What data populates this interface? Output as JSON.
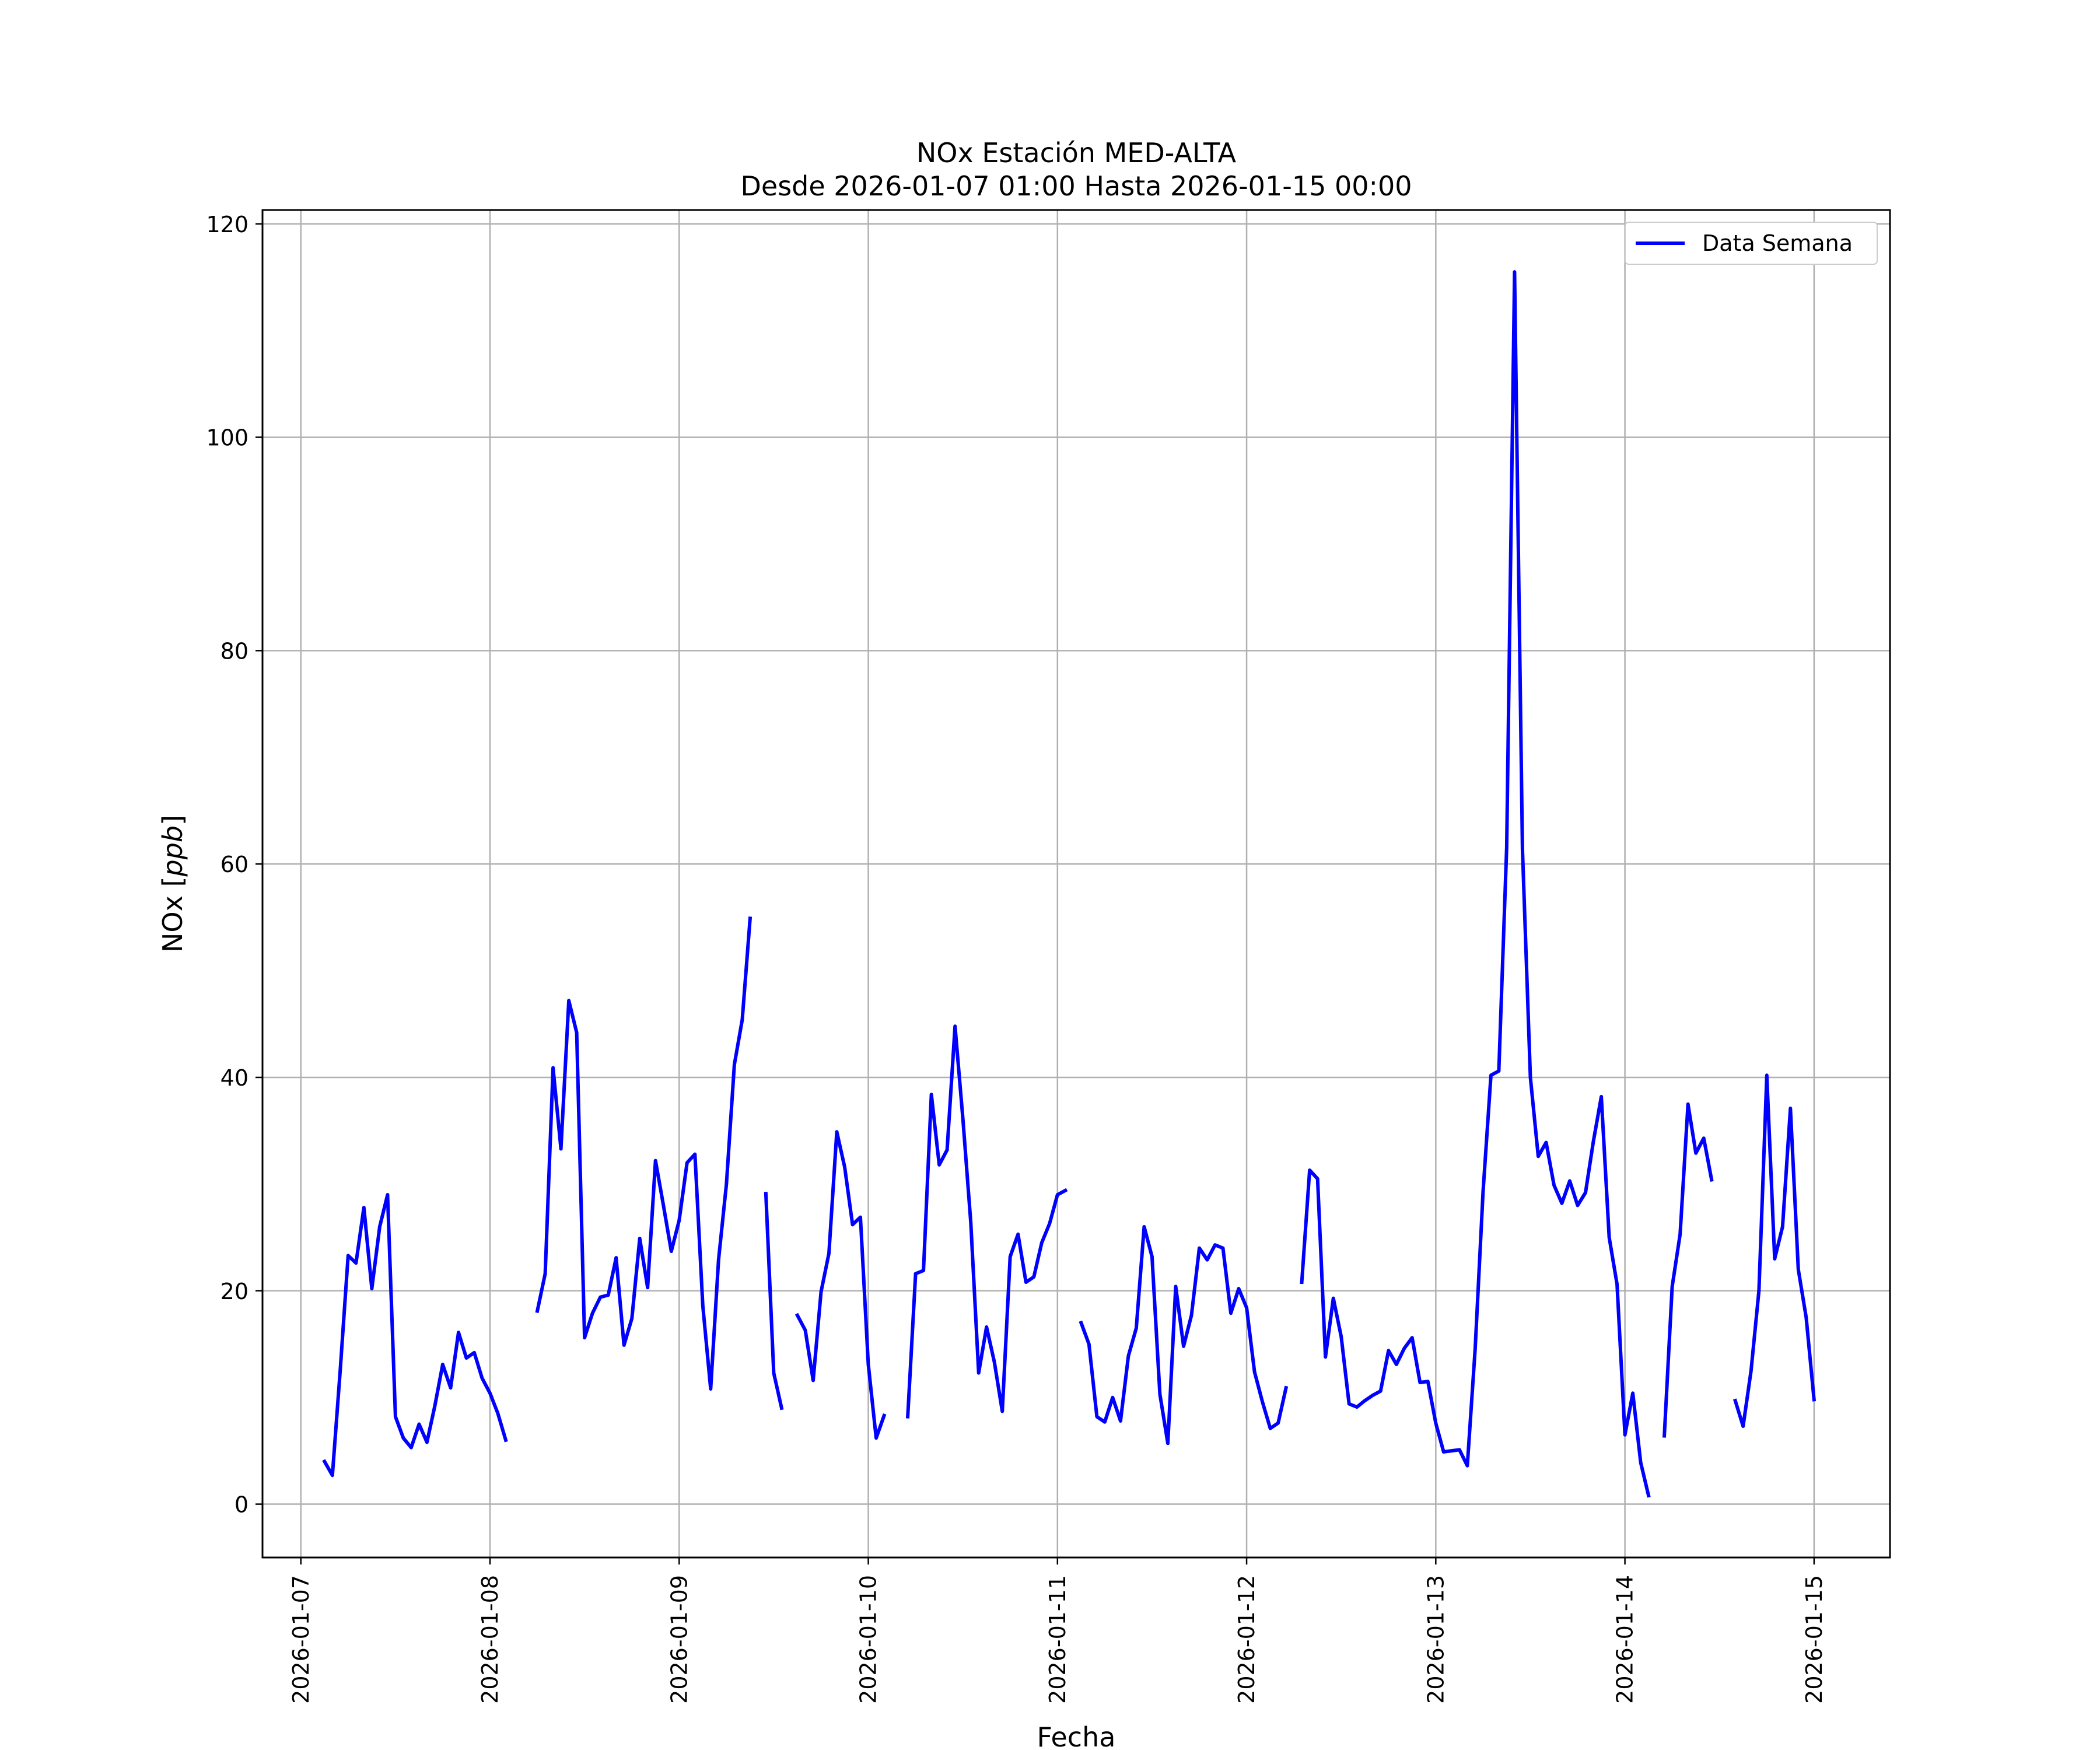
{
  "chart_data": {
    "type": "line",
    "title_lines": [
      "NOx Estación MED-ALTA",
      "Desde 2026-01-07 01:00 Hasta 2026-01-15 00:00"
    ],
    "xlabel": "Fecha",
    "ylabel_main": "NOx [",
    "ylabel_unit": "ppb",
    "ylabel_end": "]",
    "x_type": "datetime",
    "xlim": [
      "2026-01-06 19:08",
      "2026-01-15 09:38"
    ],
    "ylim": [
      -5,
      121.3
    ],
    "y_ticks": [
      0,
      20,
      40,
      60,
      80,
      100,
      120
    ],
    "x_ticks": [
      "2026-01-07",
      "2026-01-08",
      "2026-01-09",
      "2026-01-10",
      "2026-01-11",
      "2026-01-12",
      "2026-01-13",
      "2026-01-14",
      "2026-01-15"
    ],
    "grid": true,
    "legend": {
      "position": "top-right",
      "entries": [
        "Data Semana"
      ]
    },
    "colors": {
      "line": "#0000ff",
      "grid": "#b0b0b0",
      "axes": "#000000"
    },
    "series": [
      {
        "name": "Data Semana",
        "segments": [
          [
            [
              "2026-01-07 03:00",
              4.0
            ],
            [
              "2026-01-07 04:00",
              2.7
            ],
            [
              "2026-01-07 05:00",
              12.6
            ],
            [
              "2026-01-07 06:00",
              23.3
            ],
            [
              "2026-01-07 07:00",
              22.6
            ],
            [
              "2026-01-07 08:00",
              27.8
            ],
            [
              "2026-01-07 09:00",
              20.2
            ],
            [
              "2026-01-07 10:00",
              26.0
            ],
            [
              "2026-01-07 11:00",
              29.0
            ],
            [
              "2026-01-07 12:00",
              8.2
            ],
            [
              "2026-01-07 13:00",
              6.2
            ],
            [
              "2026-01-07 14:00",
              5.3
            ],
            [
              "2026-01-07 15:00",
              7.5
            ],
            [
              "2026-01-07 16:00",
              5.8
            ],
            [
              "2026-01-07 17:00",
              9.2
            ],
            [
              "2026-01-07 18:00",
              13.1
            ],
            [
              "2026-01-07 19:00",
              10.9
            ],
            [
              "2026-01-07 20:00",
              16.1
            ],
            [
              "2026-01-07 21:00",
              13.7
            ],
            [
              "2026-01-07 22:00",
              14.2
            ],
            [
              "2026-01-07 23:00",
              11.8
            ],
            [
              "2026-01-08 00:00",
              10.4
            ],
            [
              "2026-01-08 01:00",
              8.5
            ],
            [
              "2026-01-08 02:00",
              6.0
            ]
          ],
          [
            [
              "2026-01-08 06:00",
              18.1
            ],
            [
              "2026-01-08 07:00",
              21.6
            ],
            [
              "2026-01-08 08:00",
              40.9
            ],
            [
              "2026-01-08 09:00",
              33.3
            ],
            [
              "2026-01-08 10:00",
              47.2
            ],
            [
              "2026-01-08 11:00",
              44.2
            ],
            [
              "2026-01-08 12:00",
              15.6
            ],
            [
              "2026-01-08 13:00",
              17.9
            ],
            [
              "2026-01-08 14:00",
              19.4
            ],
            [
              "2026-01-08 15:00",
              19.6
            ],
            [
              "2026-01-08 16:00",
              23.1
            ],
            [
              "2026-01-08 17:00",
              14.9
            ],
            [
              "2026-01-08 18:00",
              17.4
            ],
            [
              "2026-01-08 19:00",
              24.9
            ],
            [
              "2026-01-08 20:00",
              20.3
            ],
            [
              "2026-01-08 21:00",
              32.2
            ],
            [
              "2026-01-08 22:00",
              28.0
            ],
            [
              "2026-01-08 23:00",
              23.7
            ],
            [
              "2026-01-09 00:00",
              26.6
            ],
            [
              "2026-01-09 01:00",
              32.0
            ],
            [
              "2026-01-09 02:00",
              32.8
            ],
            [
              "2026-01-09 03:00",
              18.6
            ],
            [
              "2026-01-09 04:00",
              10.8
            ],
            [
              "2026-01-09 05:00",
              22.9
            ],
            [
              "2026-01-09 06:00",
              30.0
            ],
            [
              "2026-01-09 07:00",
              41.2
            ],
            [
              "2026-01-09 08:00",
              45.4
            ],
            [
              "2026-01-09 09:00",
              54.9
            ]
          ],
          [
            [
              "2026-01-09 11:00",
              29.1
            ],
            [
              "2026-01-09 12:00",
              12.3
            ],
            [
              "2026-01-09 13:00",
              9.0
            ]
          ],
          [
            [
              "2026-01-09 15:00",
              17.7
            ],
            [
              "2026-01-09 16:00",
              16.3
            ],
            [
              "2026-01-09 17:00",
              11.6
            ],
            [
              "2026-01-09 18:00",
              19.9
            ],
            [
              "2026-01-09 19:00",
              23.5
            ],
            [
              "2026-01-09 20:00",
              34.9
            ],
            [
              "2026-01-09 21:00",
              31.6
            ],
            [
              "2026-01-09 22:00",
              26.2
            ],
            [
              "2026-01-09 23:00",
              26.9
            ],
            [
              "2026-01-10 00:00",
              13.1
            ],
            [
              "2026-01-10 01:00",
              6.2
            ],
            [
              "2026-01-10 02:00",
              8.3
            ]
          ],
          [
            [
              "2026-01-10 05:00",
              8.2
            ],
            [
              "2026-01-10 06:00",
              21.6
            ],
            [
              "2026-01-10 07:00",
              21.9
            ],
            [
              "2026-01-10 08:00",
              38.4
            ],
            [
              "2026-01-10 09:00",
              31.8
            ],
            [
              "2026-01-10 10:00",
              33.2
            ],
            [
              "2026-01-10 11:00",
              44.8
            ],
            [
              "2026-01-10 12:00",
              36.1
            ],
            [
              "2026-01-10 13:00",
              26.4
            ],
            [
              "2026-01-10 14:00",
              12.3
            ],
            [
              "2026-01-10 15:00",
              16.6
            ],
            [
              "2026-01-10 16:00",
              13.3
            ],
            [
              "2026-01-10 17:00",
              8.7
            ],
            [
              "2026-01-10 18:00",
              23.2
            ],
            [
              "2026-01-10 19:00",
              25.3
            ],
            [
              "2026-01-10 20:00",
              20.8
            ],
            [
              "2026-01-10 21:00",
              21.3
            ],
            [
              "2026-01-10 22:00",
              24.5
            ],
            [
              "2026-01-10 23:00",
              26.3
            ],
            [
              "2026-01-11 00:00",
              29.0
            ],
            [
              "2026-01-11 01:00",
              29.4
            ]
          ],
          [
            [
              "2026-01-11 03:00",
              17.0
            ],
            [
              "2026-01-11 04:00",
              15.0
            ],
            [
              "2026-01-11 05:00",
              8.2
            ],
            [
              "2026-01-11 06:00",
              7.7
            ],
            [
              "2026-01-11 07:00",
              10.0
            ],
            [
              "2026-01-11 08:00",
              7.8
            ],
            [
              "2026-01-11 09:00",
              13.9
            ],
            [
              "2026-01-11 10:00",
              16.5
            ],
            [
              "2026-01-11 11:00",
              26.0
            ],
            [
              "2026-01-11 12:00",
              23.2
            ],
            [
              "2026-01-11 13:00",
              10.3
            ],
            [
              "2026-01-11 14:00",
              5.7
            ],
            [
              "2026-01-11 15:00",
              20.4
            ],
            [
              "2026-01-11 16:00",
              14.8
            ],
            [
              "2026-01-11 17:00",
              17.7
            ],
            [
              "2026-01-11 18:00",
              24.0
            ],
            [
              "2026-01-11 19:00",
              22.9
            ],
            [
              "2026-01-11 20:00",
              24.3
            ],
            [
              "2026-01-11 21:00",
              24.0
            ],
            [
              "2026-01-11 22:00",
              17.9
            ],
            [
              "2026-01-11 23:00",
              20.2
            ],
            [
              "2026-01-12 00:00",
              18.4
            ],
            [
              "2026-01-12 01:00",
              12.4
            ],
            [
              "2026-01-12 02:00",
              9.6
            ],
            [
              "2026-01-12 03:00",
              7.1
            ],
            [
              "2026-01-12 04:00",
              7.6
            ],
            [
              "2026-01-12 05:00",
              10.9
            ]
          ],
          [
            [
              "2026-01-12 07:00",
              20.8
            ],
            [
              "2026-01-12 08:00",
              31.3
            ],
            [
              "2026-01-12 09:00",
              30.5
            ],
            [
              "2026-01-12 10:00",
              13.8
            ],
            [
              "2026-01-12 11:00",
              19.3
            ],
            [
              "2026-01-12 12:00",
              15.7
            ],
            [
              "2026-01-12 13:00",
              9.4
            ],
            [
              "2026-01-12 14:00",
              9.1
            ],
            [
              "2026-01-12 15:00",
              9.7
            ],
            [
              "2026-01-12 16:00",
              10.2
            ],
            [
              "2026-01-12 17:00",
              10.6
            ],
            [
              "2026-01-12 18:00",
              14.4
            ],
            [
              "2026-01-12 19:00",
              13.1
            ],
            [
              "2026-01-12 20:00",
              14.6
            ],
            [
              "2026-01-12 21:00",
              15.6
            ],
            [
              "2026-01-12 22:00",
              11.4
            ],
            [
              "2026-01-12 23:00",
              11.5
            ],
            [
              "2026-01-13 00:00",
              7.6
            ],
            [
              "2026-01-13 01:00",
              4.9
            ],
            [
              "2026-01-13 02:00",
              5.0
            ],
            [
              "2026-01-13 03:00",
              5.1
            ],
            [
              "2026-01-13 04:00",
              3.6
            ],
            [
              "2026-01-13 05:00",
              14.6
            ],
            [
              "2026-01-13 06:00",
              29.3
            ],
            [
              "2026-01-13 07:00",
              40.2
            ],
            [
              "2026-01-13 08:00",
              40.6
            ],
            [
              "2026-01-13 09:00",
              61.6
            ],
            [
              "2026-01-13 10:00",
              115.5
            ],
            [
              "2026-01-13 11:00",
              61.4
            ],
            [
              "2026-01-13 12:00",
              40.0
            ],
            [
              "2026-01-13 13:00",
              32.6
            ],
            [
              "2026-01-13 14:00",
              33.9
            ],
            [
              "2026-01-13 15:00",
              29.9
            ],
            [
              "2026-01-13 16:00",
              28.2
            ],
            [
              "2026-01-13 17:00",
              30.3
            ],
            [
              "2026-01-13 18:00",
              28.0
            ],
            [
              "2026-01-13 19:00",
              29.2
            ],
            [
              "2026-01-13 20:00",
              34.0
            ],
            [
              "2026-01-13 21:00",
              38.2
            ],
            [
              "2026-01-13 22:00",
              25.0
            ],
            [
              "2026-01-13 23:00",
              20.6
            ],
            [
              "2026-01-14 00:00",
              6.5
            ],
            [
              "2026-01-14 01:00",
              10.4
            ],
            [
              "2026-01-14 02:00",
              3.9
            ],
            [
              "2026-01-14 03:00",
              0.8
            ]
          ],
          [
            [
              "2026-01-14 05:00",
              6.4
            ],
            [
              "2026-01-14 06:00",
              20.4
            ],
            [
              "2026-01-14 07:00",
              25.3
            ],
            [
              "2026-01-14 08:00",
              37.5
            ],
            [
              "2026-01-14 09:00",
              32.9
            ],
            [
              "2026-01-14 10:00",
              34.3
            ],
            [
              "2026-01-14 11:00",
              30.4
            ]
          ],
          [
            [
              "2026-01-14 14:00",
              9.7
            ],
            [
              "2026-01-14 15:00",
              7.3
            ],
            [
              "2026-01-14 16:00",
              12.5
            ],
            [
              "2026-01-14 17:00",
              20.0
            ],
            [
              "2026-01-14 18:00",
              40.2
            ],
            [
              "2026-01-14 19:00",
              23.0
            ],
            [
              "2026-01-14 20:00",
              26.0
            ],
            [
              "2026-01-14 21:00",
              37.1
            ],
            [
              "2026-01-14 22:00",
              22.0
            ],
            [
              "2026-01-14 23:00",
              17.5
            ],
            [
              "2026-01-15 00:00",
              9.8
            ]
          ]
        ]
      }
    ]
  }
}
